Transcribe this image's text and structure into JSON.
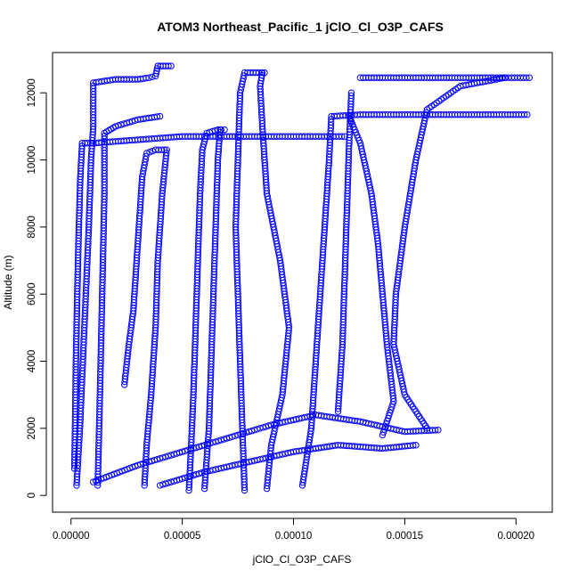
{
  "chart_data": {
    "type": "scatter",
    "title": "ATOM3 Northeast_Pacific_1 jClO_Cl_O3P_CAFS",
    "xlabel": "jClO_Cl_O3P_CAFS",
    "ylabel": "Altitude (m)",
    "xlim": [
      -8.3e-06,
      0.0002163
    ],
    "ylim": [
      -500,
      13200
    ],
    "x_ticks": [
      {
        "value": 0.0,
        "label": "0.00000"
      },
      {
        "value": 5e-05,
        "label": "0.00005"
      },
      {
        "value": 0.0001,
        "label": "0.00010"
      },
      {
        "value": 0.00015,
        "label": "0.00015"
      },
      {
        "value": 0.0002,
        "label": "0.00020"
      }
    ],
    "y_ticks": [
      {
        "value": 0,
        "label": "0"
      },
      {
        "value": 2000,
        "label": "2000"
      },
      {
        "value": 4000,
        "label": "4000"
      },
      {
        "value": 6000,
        "label": "6000"
      },
      {
        "value": 8000,
        "label": "8000"
      },
      {
        "value": 10000,
        "label": "10000"
      },
      {
        "value": 12000,
        "label": "12000"
      }
    ],
    "grid": false,
    "legend": "none",
    "marker": "open-circle",
    "color": "#0000ff",
    "series": [
      {
        "points": [
          [
            1.5e-06,
            800
          ],
          [
            1.8e-06,
            2000
          ],
          [
            2.2e-06,
            4000
          ],
          [
            2.8e-06,
            6000
          ],
          [
            3.5e-06,
            8000
          ],
          [
            4.2e-06,
            9500
          ],
          [
            5e-06,
            10500
          ],
          [
            1e-05,
            10500
          ],
          [
            2e-05,
            10550
          ],
          [
            3e-05,
            10600
          ],
          [
            4e-05,
            10650
          ],
          [
            5e-05,
            10700
          ],
          [
            6e-05,
            10700
          ],
          [
            7e-05,
            10700
          ],
          [
            8e-05,
            10700
          ],
          [
            9e-05,
            10700
          ],
          [
            0.0001,
            10700
          ],
          [
            0.00011,
            10700
          ],
          [
            0.000123,
            10700
          ]
        ]
      },
      {
        "points": [
          [
            2.5e-06,
            300
          ],
          [
            4e-06,
            2000
          ],
          [
            6e-06,
            5000
          ],
          [
            8e-06,
            8000
          ],
          [
            9e-06,
            10000
          ],
          [
            1e-05,
            11000
          ],
          [
            1e-05,
            12300
          ],
          [
            1.5e-05,
            12350
          ],
          [
            2e-05,
            12400
          ],
          [
            2.5e-05,
            12400
          ],
          [
            3e-05,
            12400
          ],
          [
            3.5e-05,
            12450
          ],
          [
            3.8e-05,
            12500
          ],
          [
            3.9e-05,
            12800
          ],
          [
            4.5e-05,
            12800
          ]
        ]
      },
      {
        "points": [
          [
            1.2e-05,
            300
          ],
          [
            1.3e-05,
            3000
          ],
          [
            1.4e-05,
            6000
          ],
          [
            1.5e-05,
            9000
          ],
          [
            1.5e-05,
            10800
          ],
          [
            2e-05,
            11000
          ],
          [
            3e-05,
            11200
          ],
          [
            4e-05,
            11300
          ]
        ]
      },
      {
        "points": [
          [
            2.4e-05,
            3300
          ],
          [
            2.6e-05,
            4500
          ],
          [
            2.8e-05,
            5500
          ],
          [
            2.9e-05,
            6500
          ],
          [
            3e-05,
            7500
          ],
          [
            3.1e-05,
            8500
          ],
          [
            3.2e-05,
            9500
          ],
          [
            3.4e-05,
            10200
          ],
          [
            3.8e-05,
            10300
          ],
          [
            4.2e-05,
            10300
          ]
        ]
      },
      {
        "points": [
          [
            3.3e-05,
            300
          ],
          [
            3.4e-05,
            1500
          ],
          [
            3.6e-05,
            3000
          ],
          [
            3.8e-05,
            5000
          ],
          [
            3.9e-05,
            7000
          ],
          [
            4.1e-05,
            9000
          ],
          [
            4.3e-05,
            10300
          ]
        ]
      },
      {
        "points": [
          [
            5.3e-05,
            150
          ],
          [
            5.4e-05,
            1500
          ],
          [
            5.5e-05,
            3000
          ],
          [
            5.6e-05,
            5000
          ],
          [
            5.7e-05,
            7000
          ],
          [
            5.8e-05,
            9000
          ],
          [
            5.9e-05,
            10300
          ],
          [
            6.1e-05,
            10800
          ],
          [
            6.6e-05,
            10900
          ],
          [
            6.9e-05,
            10900
          ]
        ]
      },
      {
        "points": [
          [
            6e-05,
            200
          ],
          [
            6.2e-05,
            2000
          ],
          [
            6.3e-05,
            4000
          ],
          [
            6.4e-05,
            6000
          ],
          [
            6.5e-05,
            8000
          ],
          [
            6.6e-05,
            10000
          ],
          [
            6.7e-05,
            10900
          ]
        ]
      },
      {
        "points": [
          [
            7.8e-05,
            150
          ],
          [
            7.7e-05,
            2000
          ],
          [
            7.6e-05,
            4000
          ],
          [
            7.5e-05,
            6000
          ],
          [
            7.4e-05,
            8000
          ],
          [
            7.5e-05,
            10000
          ],
          [
            7.6e-05,
            12000
          ],
          [
            7.8e-05,
            12600
          ],
          [
            8.7e-05,
            12600
          ]
        ]
      },
      {
        "points": [
          [
            8.8e-05,
            200
          ],
          [
            9e-05,
            1500
          ],
          [
            9.5e-05,
            3000
          ],
          [
            9.8e-05,
            5000
          ],
          [
            9.4e-05,
            7000
          ],
          [
            8.8e-05,
            9000
          ],
          [
            8.6e-05,
            11000
          ],
          [
            8.5e-05,
            12200
          ],
          [
            8.6e-05,
            12600
          ]
        ]
      },
      {
        "points": [
          [
            0.000104,
            300
          ],
          [
            0.000108,
            2000
          ],
          [
            0.00011,
            4000
          ],
          [
            0.000112,
            6000
          ],
          [
            0.000114,
            8000
          ],
          [
            0.000116,
            10000
          ],
          [
            0.000117,
            11300
          ],
          [
            0.00013,
            11350
          ],
          [
            0.00015,
            11350
          ],
          [
            0.00017,
            11350
          ],
          [
            0.00019,
            11350
          ],
          [
            0.000205,
            11350
          ]
        ]
      },
      {
        "points": [
          [
            0.00012,
            2500
          ],
          [
            0.000122,
            4500
          ],
          [
            0.000123,
            6500
          ],
          [
            0.000124,
            8500
          ],
          [
            0.000125,
            10500
          ],
          [
            0.000126,
            12000
          ]
        ]
      },
      {
        "points": [
          [
            0.00014,
            1800
          ],
          [
            0.000145,
            2800
          ],
          [
            0.000142,
            4500
          ],
          [
            0.00014,
            6000
          ],
          [
            0.000138,
            7500
          ],
          [
            0.000135,
            9000
          ],
          [
            0.00013,
            10500
          ],
          [
            0.000125,
            11300
          ]
        ]
      },
      {
        "points": [
          [
            0.00016,
            2000
          ],
          [
            0.00015,
            3000
          ],
          [
            0.000145,
            4500
          ],
          [
            0.000146,
            6000
          ],
          [
            0.00015,
            8000
          ],
          [
            0.000155,
            10000
          ],
          [
            0.00016,
            11500
          ],
          [
            0.000175,
            12200
          ],
          [
            0.000195,
            12450
          ]
        ]
      },
      {
        "points": [
          [
            0.00013,
            12450
          ],
          [
            0.00014,
            12450
          ],
          [
            0.00015,
            12450
          ],
          [
            0.00016,
            12450
          ],
          [
            0.00017,
            12450
          ],
          [
            0.00018,
            12450
          ],
          [
            0.00019,
            12450
          ],
          [
            0.000206,
            12450
          ]
        ]
      },
      {
        "points": [
          [
            1e-05,
            400
          ],
          [
            3e-05,
            900
          ],
          [
            5e-05,
            1300
          ],
          [
            7e-05,
            1700
          ],
          [
            9e-05,
            2100
          ],
          [
            0.00011,
            2400
          ],
          [
            0.00013,
            2200
          ],
          [
            0.00015,
            1900
          ],
          [
            0.000165,
            1950
          ]
        ]
      },
      {
        "points": [
          [
            4e-05,
            300
          ],
          [
            6e-05,
            700
          ],
          [
            8e-05,
            1000
          ],
          [
            0.0001,
            1300
          ],
          [
            0.00012,
            1500
          ],
          [
            0.00014,
            1400
          ],
          [
            0.000155,
            1500
          ]
        ]
      }
    ]
  }
}
